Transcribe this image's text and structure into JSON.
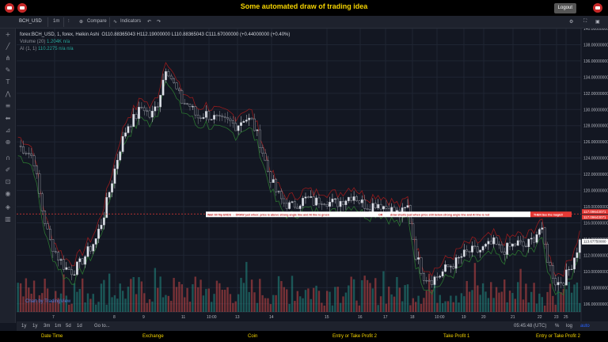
{
  "app": {
    "title": "Some automated draw of trading idea",
    "logout_label": "Logout"
  },
  "toolbar": {
    "symbol": "BCH_USD",
    "interval": "1m",
    "compare_label": "Compare",
    "indicators_label": "Indicators"
  },
  "legend": {
    "main": "forex:BCH_USD, 1, forex, Heikin Ashi",
    "ohlc": "O110.88365043  H112.19000000  L110.88365043  C111.67000000  (+0.44000000 (+0.40%)",
    "volume_label": "Volume (20)",
    "volume_value": "1.204K  n/a",
    "ai_label": "AI (1, 1)",
    "ai_value": "110.2275  n/a  n/a"
  },
  "watermark": "Chart by TradingView",
  "annotation": {
    "left": "Wait till flip ENDS  →  DRAW just when: price is above strong angle line and AI line is green",
    "or": "OR",
    "mid": "draw shorts just when price still below strong angle line and AI line is red",
    "right": "THEN See the magic!!"
  },
  "price_labels": {
    "line1": "117.09643071",
    "line2": "117.09643071",
    "current": "113.67750000"
  },
  "time_readout": "05:45:48 (UTC)",
  "timeframes": [
    "1y",
    "1y",
    "3m",
    "1m",
    "5d",
    "1d",
    "Go to..."
  ],
  "bottom_right": [
    "%",
    "log",
    "auto"
  ],
  "bottom_nav": [
    "Date Time",
    "Exchange",
    "Coin",
    "Entry or Take Profit 2",
    "Take Profit 1",
    "Entry or Take Profit 2"
  ],
  "colors": {
    "background": "#131722",
    "bull": "#26a69a",
    "bear": "#ef5350",
    "signal_red": "#e53935",
    "title_yellow": "#f5d400"
  },
  "chart_data": {
    "type": "candlestick",
    "y_ticks": [
      "140.00000000",
      "138.00000000",
      "136.00000000",
      "134.00000000",
      "132.00000000",
      "130.00000000",
      "128.00000000",
      "126.00000000",
      "124.00000000",
      "122.00000000",
      "120.00000000",
      "118.00000000",
      "116.00000000",
      "114.00000000",
      "112.00000000",
      "110.00000000",
      "108.00000000",
      "106.00000000"
    ],
    "x_ticks": [
      "7",
      "8",
      "9",
      "11",
      "10:00",
      "13",
      "14",
      "15",
      "16",
      "17",
      "18",
      "10:00",
      "19",
      "20",
      "21",
      "22",
      "23",
      "25"
    ],
    "ylim": [
      105,
      140
    ],
    "close_path": [
      125.5,
      125,
      124,
      118,
      114,
      112,
      110.5,
      110,
      111,
      112.5,
      114,
      117,
      121,
      125,
      128,
      129,
      130.5,
      129,
      131,
      135.5,
      133,
      131,
      130.5,
      129,
      129.5,
      129,
      128.5,
      128.5,
      128,
      129,
      128.5,
      126,
      122.5,
      120,
      118.5,
      118,
      118.5,
      119,
      118.5,
      119,
      118.5,
      118.5,
      119,
      119.5,
      118.5,
      118,
      118.5,
      118,
      117.5,
      117,
      118,
      112,
      109.5,
      109,
      109.5,
      110.5,
      111,
      112,
      112.5,
      112.5,
      113,
      113.5,
      112.5,
      113,
      113.5,
      113,
      114,
      115.5,
      111,
      108.5,
      109,
      111,
      113.7
    ]
  }
}
